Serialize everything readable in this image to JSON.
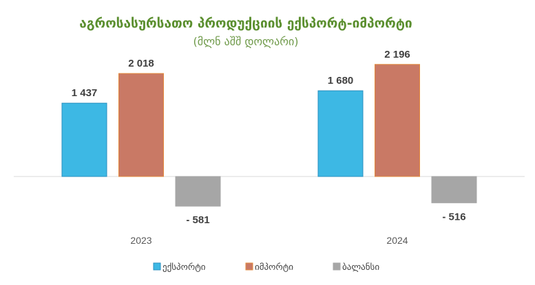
{
  "chart_data": {
    "type": "bar",
    "title": "აგროსასურსათო პროდუქციის ექსპორტ-იმპორტი",
    "subtitle": "(მლნ აშშ დოლარი)",
    "categories": [
      "2023",
      "2024"
    ],
    "series": [
      {
        "name": "ექსპორტი",
        "values": [
          1437,
          1680
        ],
        "labels": [
          "1 437",
          "1 680"
        ],
        "color": "#3db8e4",
        "stroke": "#2a8fbf"
      },
      {
        "name": "იმპორტი",
        "values": [
          2018,
          2196
        ],
        "labels": [
          "2 018",
          "2 196"
        ],
        "color": "#c97965",
        "stroke": "#e38a3c"
      },
      {
        "name": "ბალანსი",
        "values": [
          -581,
          -516
        ],
        "labels": [
          "- 581",
          "- 516"
        ],
        "color": "#a6a6a6",
        "stroke": "#a6a6a6"
      }
    ],
    "xlabel": "",
    "ylabel": "",
    "grid": false,
    "legend": "bottom"
  }
}
